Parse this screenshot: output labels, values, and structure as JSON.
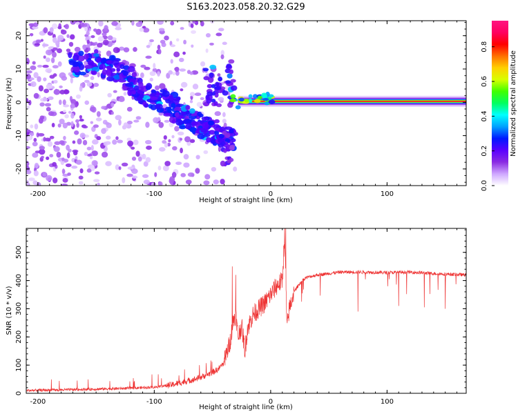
{
  "figure": {
    "title": "S163.2023.058.20.32.G29"
  },
  "colorbar": {
    "label": "Normalized spectral amplitude",
    "ticks": [
      "0.0",
      "0.2",
      "0.4",
      "0.6",
      "0.8"
    ],
    "range": [
      0.0,
      0.95
    ],
    "colors": [
      "#ffffff",
      "#cfa7ff",
      "#8a2be2",
      "#5a00ff",
      "#0018ff",
      "#00a0ff",
      "#00ffff",
      "#00ff60",
      "#40ff00",
      "#d8ff00",
      "#ffd000",
      "#ff7000",
      "#ff0000",
      "#ff0060",
      "#ff1480"
    ]
  },
  "chart_data": [
    {
      "type": "heatmap",
      "xlabel": "Height of straight line (km)",
      "ylabel": "Frequency (Hz)",
      "xlim": [
        -210,
        168
      ],
      "ylim": [
        -25,
        24.5
      ],
      "xticks": [
        "-200",
        "-100",
        "0",
        "100"
      ],
      "xtick_values": [
        -200,
        -100,
        0,
        100
      ],
      "yticks": [
        "-20",
        "-10",
        "0",
        "10",
        "20"
      ],
      "ytick_values": [
        -20,
        -10,
        0,
        10,
        20
      ],
      "grid": false,
      "features": {
        "steady_line": {
          "x_range": [
            -28,
            168
          ],
          "frequency": 0.3,
          "amplitude": 0.9
        },
        "diagonal_band": {
          "points": [
            [
              -170,
              11
            ],
            [
              -145,
              12
            ],
            [
              -125,
              8
            ],
            [
              -110,
              3
            ],
            [
              -90,
              0
            ],
            [
              -75,
              -4
            ],
            [
              -60,
              -7
            ],
            [
              -45,
              -9
            ],
            [
              -32,
              -12
            ]
          ]
        },
        "upper_cluster": {
          "center": [
            -45,
            5
          ],
          "amplitude": 0.4
        },
        "transition_cluster": {
          "center": [
            -15,
            1
          ],
          "amplitude": 0.7
        }
      },
      "colors": {
        "line_core": "#ff0000",
        "line_edge": "#00ff40",
        "noise": "#b070f0"
      }
    },
    {
      "type": "line",
      "xlabel": "Height of straight line (km)",
      "ylabel": "SNR (10 * v/v)",
      "xlim": [
        -210,
        168
      ],
      "ylim": [
        0,
        585
      ],
      "xticks": [
        "-200",
        "-100",
        "0",
        "100"
      ],
      "xtick_values": [
        -200,
        -100,
        0,
        100
      ],
      "yticks": [
        "0",
        "100",
        "200",
        "300",
        "400",
        "500"
      ],
      "ytick_values": [
        0,
        100,
        200,
        300,
        400,
        500
      ],
      "grid": false,
      "series": [
        {
          "color": "#ee3333",
          "x": [
            -210,
            -180,
            -150,
            -120,
            -100,
            -85,
            -75,
            -65,
            -55,
            -45,
            -40,
            -35,
            -32,
            -30,
            -28,
            -25,
            -22,
            -20,
            -15,
            -10,
            -5,
            0,
            5,
            10,
            12,
            14,
            16,
            20,
            25,
            30,
            40,
            50,
            60,
            80,
            100,
            120,
            140,
            168
          ],
          "values": [
            10,
            12,
            15,
            18,
            22,
            30,
            40,
            50,
            65,
            85,
            110,
            180,
            260,
            280,
            200,
            240,
            150,
            230,
            280,
            300,
            320,
            350,
            380,
            400,
            560,
            230,
            300,
            360,
            390,
            410,
            420,
            425,
            430,
            430,
            428,
            430,
            425,
            420
          ],
          "spikes": [
            {
              "x": -33,
              "value": 450
            },
            {
              "x": -30,
              "value": 420
            },
            {
              "x": 13,
              "value": 585
            },
            {
              "x": 75,
              "value": 290
            },
            {
              "x": 110,
              "value": 310
            },
            {
              "x": 132,
              "value": 305
            },
            {
              "x": 150,
              "value": 300
            }
          ]
        }
      ]
    }
  ]
}
